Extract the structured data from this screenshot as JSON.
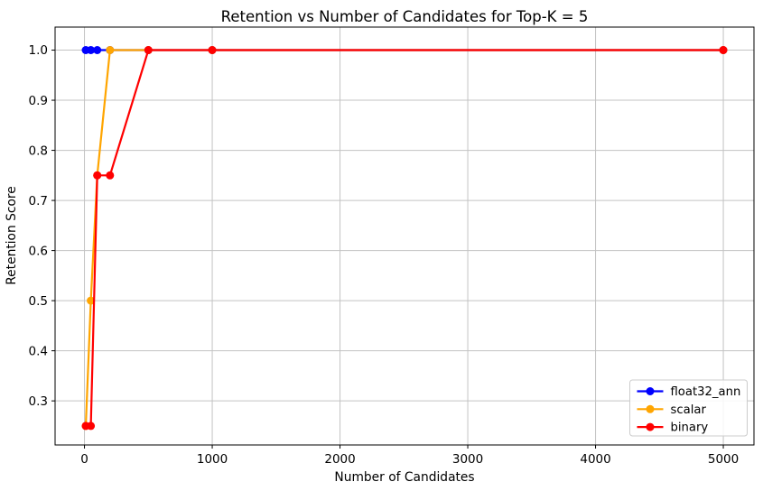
{
  "figure": {
    "title": "Retention vs Number of Candidates for Top-K = 5",
    "xlabel": "Number of Candidates",
    "ylabel": "Retention Score"
  },
  "chart_data": {
    "type": "line",
    "title": "Retention vs Number of Candidates for Top-K = 5",
    "xlabel": "Number of Candidates",
    "ylabel": "Retention Score",
    "x": [
      10,
      50,
      100,
      200,
      500,
      1000,
      5000
    ],
    "series": [
      {
        "name": "float32_ann",
        "color": "#0000ff",
        "values": [
          1.0,
          1.0,
          1.0,
          1.0,
          1.0,
          1.0,
          1.0
        ]
      },
      {
        "name": "scalar",
        "color": "#ffa500",
        "values": [
          0.25,
          0.5,
          0.75,
          1.0,
          1.0,
          1.0,
          1.0
        ]
      },
      {
        "name": "binary",
        "color": "#ff0000",
        "values": [
          0.25,
          0.25,
          0.75,
          0.75,
          1.0,
          1.0,
          1.0
        ]
      }
    ],
    "xticks": [
      0,
      1000,
      2000,
      3000,
      4000,
      5000
    ],
    "xtick_labels": [
      "0",
      "1000",
      "2000",
      "3000",
      "4000",
      "5000"
    ],
    "yticks": [
      0.3,
      0.4,
      0.5,
      0.6,
      0.7,
      0.8,
      0.9,
      1.0
    ],
    "ytick_labels": [
      "0.3",
      "0.4",
      "0.5",
      "0.6",
      "0.7",
      "0.8",
      "0.9",
      "1.0"
    ],
    "xlim": [
      -230,
      5240
    ],
    "ylim": [
      0.212,
      1.046
    ],
    "grid": true,
    "legend": {
      "position": "lower right",
      "entries": [
        "float32_ann",
        "scalar",
        "binary"
      ]
    },
    "style": {
      "grid_color": "#c3c3c3",
      "spine_color": "#000000",
      "legend_border": "#cccccc",
      "legend_bg": "rgba(255,255,255,0.85)",
      "marker_radius": 4.5,
      "line_width": 2.2
    }
  }
}
